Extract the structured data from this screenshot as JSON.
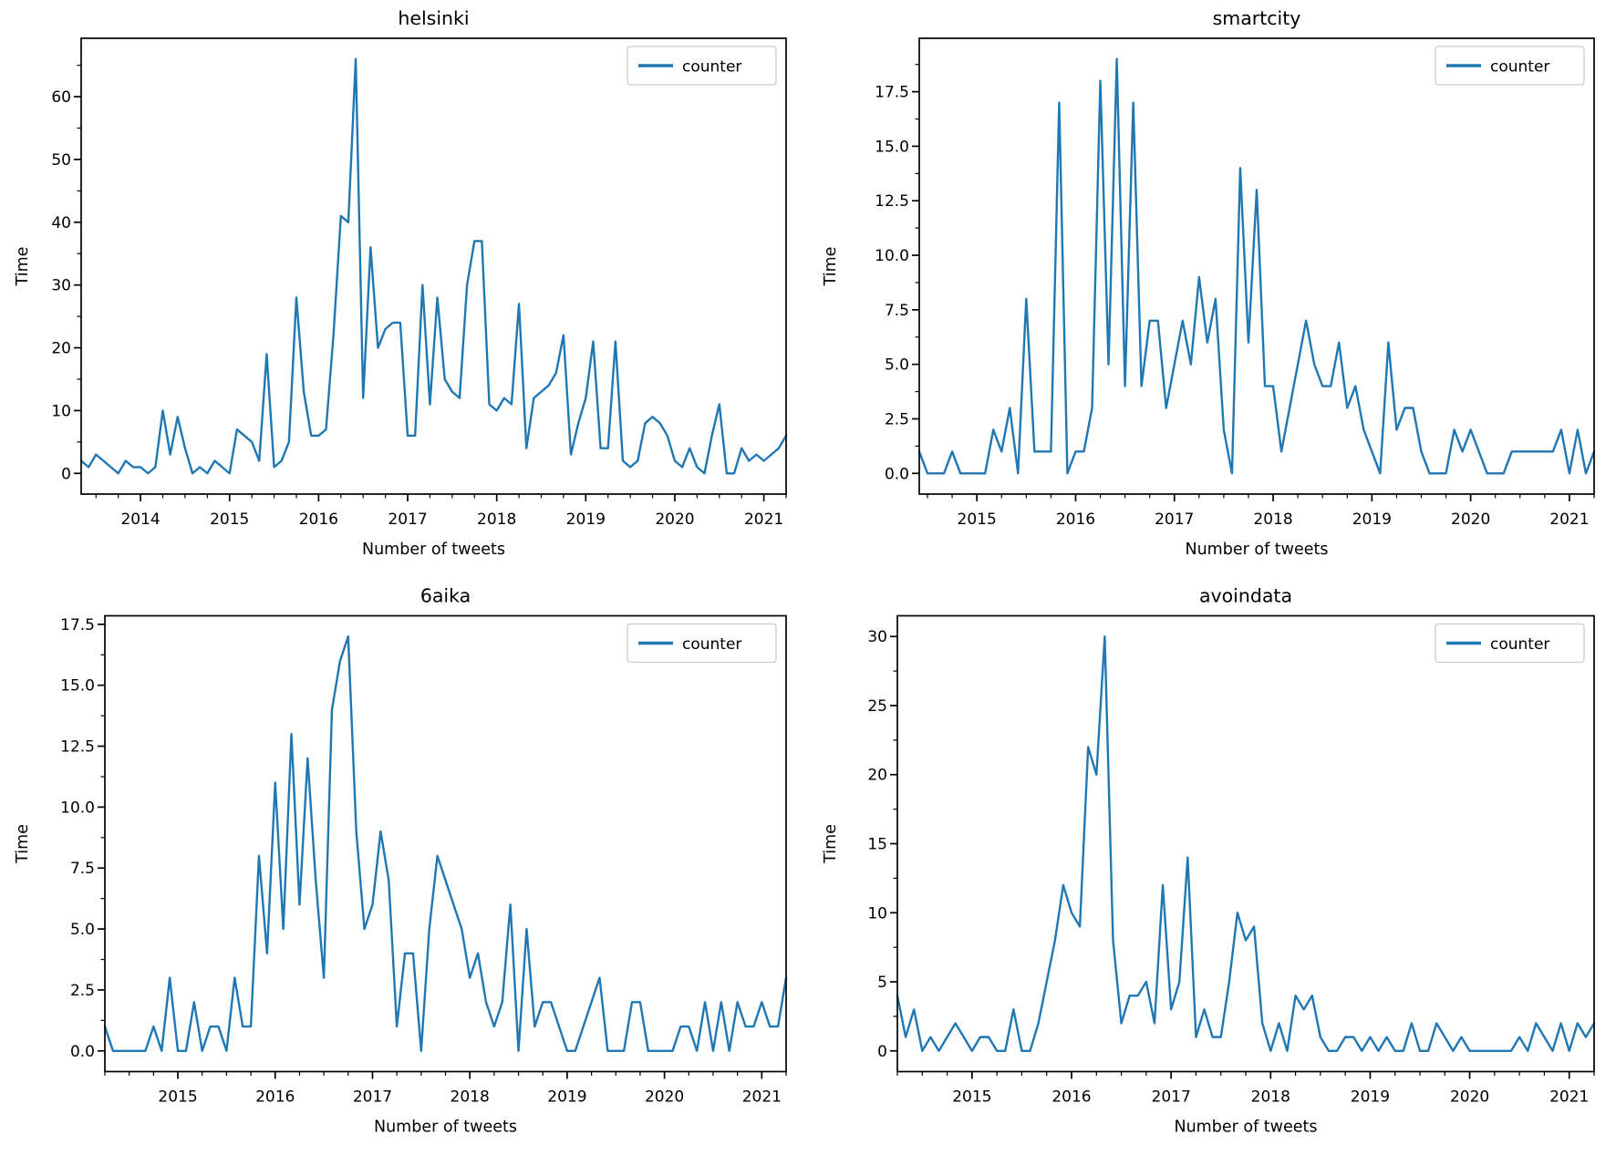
{
  "figure": {
    "background": "#ffffff",
    "line_color": "#1f77b4",
    "axis_color": "#000000",
    "legend_edge_color": "#cccccc",
    "legend_label": "counter"
  },
  "chart_data": [
    {
      "type": "line",
      "title": "helsinki",
      "xlabel": "Number of tweets",
      "ylabel": "Time",
      "legend": [
        "counter"
      ],
      "legend_position": "upper right",
      "grid": false,
      "line_color": "#1f77b4",
      "xlim": [
        2013.3333,
        2021.25
      ],
      "ylim": [
        -3.3,
        69.3
      ],
      "x_ticks": [
        2014,
        2015,
        2016,
        2017,
        2018,
        2019,
        2020,
        2021
      ],
      "x_tick_labels": [
        "2014",
        "2015",
        "2016",
        "2017",
        "2018",
        "2019",
        "2020",
        "2021"
      ],
      "y_ticks": [
        0,
        10,
        20,
        30,
        40,
        50,
        60
      ],
      "y_tick_labels": [
        "0",
        "10",
        "20",
        "30",
        "40",
        "50",
        "60"
      ],
      "series": [
        {
          "name": "counter",
          "x_start": 2013.3333,
          "x_step": 0.0833333,
          "values": [
            2,
            1,
            3,
            2,
            1,
            0,
            2,
            1,
            1,
            0,
            1,
            10,
            3,
            9,
            4,
            0,
            1,
            0,
            2,
            1,
            0,
            7,
            6,
            5,
            2,
            19,
            1,
            2,
            5,
            28,
            13,
            6,
            6,
            7,
            22,
            41,
            40,
            66,
            12,
            36,
            20,
            23,
            24,
            24,
            6,
            6,
            30,
            11,
            28,
            15,
            13,
            12,
            30,
            37,
            37,
            11,
            10,
            12,
            11,
            27,
            4,
            12,
            13,
            14,
            16,
            22,
            3,
            8,
            12,
            21,
            4,
            4,
            21,
            2,
            1,
            2,
            8,
            9,
            8,
            6,
            2,
            1,
            4,
            1,
            0,
            6,
            11,
            0,
            0,
            4,
            2,
            3,
            2,
            3,
            4,
            6
          ]
        }
      ]
    },
    {
      "type": "line",
      "title": "smartcity",
      "xlabel": "Number of tweets",
      "ylabel": "Time",
      "legend": [
        "counter"
      ],
      "legend_position": "upper right",
      "grid": false,
      "line_color": "#1f77b4",
      "xlim": [
        2014.4167,
        2021.25
      ],
      "ylim": [
        -0.95,
        19.95
      ],
      "x_ticks": [
        2015,
        2016,
        2017,
        2018,
        2019,
        2020,
        2021
      ],
      "x_tick_labels": [
        "2015",
        "2016",
        "2017",
        "2018",
        "2019",
        "2020",
        "2021"
      ],
      "y_ticks": [
        0,
        2.5,
        5,
        7.5,
        10,
        12.5,
        15,
        17.5
      ],
      "y_tick_labels": [
        "0.0",
        "2.5",
        "5.0",
        "7.5",
        "10.0",
        "12.5",
        "15.0",
        "17.5"
      ],
      "series": [
        {
          "name": "counter",
          "x_start": 2014.4167,
          "x_step": 0.0833333,
          "values": [
            1,
            0,
            0,
            0,
            1,
            0,
            0,
            0,
            0,
            2,
            1,
            3,
            0,
            8,
            1,
            1,
            1,
            17,
            0,
            1,
            1,
            3,
            18,
            5,
            19,
            4,
            17,
            4,
            7,
            7,
            3,
            5,
            7,
            5,
            9,
            6,
            8,
            2,
            0,
            14,
            6,
            13,
            4,
            4,
            1,
            3,
            5,
            7,
            5,
            4,
            4,
            6,
            3,
            4,
            2,
            1,
            0,
            6,
            2,
            3,
            3,
            1,
            0,
            0,
            0,
            2,
            1,
            2,
            1,
            0,
            0,
            0,
            1,
            1,
            1,
            1,
            1,
            1,
            2,
            0,
            2,
            0,
            1
          ]
        }
      ]
    },
    {
      "type": "line",
      "title": "6aika",
      "xlabel": "Number of tweets",
      "ylabel": "Time",
      "legend": [
        "counter"
      ],
      "legend_position": "upper right",
      "grid": false,
      "line_color": "#1f77b4",
      "xlim": [
        2014.25,
        2021.25
      ],
      "ylim": [
        -0.85,
        17.85
      ],
      "x_ticks": [
        2015,
        2016,
        2017,
        2018,
        2019,
        2020,
        2021
      ],
      "x_tick_labels": [
        "2015",
        "2016",
        "2017",
        "2018",
        "2019",
        "2020",
        "2021"
      ],
      "y_ticks": [
        0,
        2.5,
        5,
        7.5,
        10,
        12.5,
        15,
        17.5
      ],
      "y_tick_labels": [
        "0.0",
        "2.5",
        "5.0",
        "7.5",
        "10.0",
        "12.5",
        "15.0",
        "17.5"
      ],
      "series": [
        {
          "name": "counter",
          "x_start": 2014.25,
          "x_step": 0.0833333,
          "values": [
            1,
            0,
            0,
            0,
            0,
            0,
            1,
            0,
            3,
            0,
            0,
            2,
            0,
            1,
            1,
            0,
            3,
            1,
            1,
            8,
            4,
            11,
            5,
            13,
            6,
            12,
            7,
            3,
            14,
            16,
            17,
            9,
            5,
            6,
            9,
            7,
            1,
            4,
            4,
            0,
            5,
            8,
            7,
            6,
            5,
            3,
            4,
            2,
            1,
            2,
            6,
            0,
            5,
            1,
            2,
            2,
            1,
            0,
            0,
            1,
            2,
            3,
            0,
            0,
            0,
            2,
            2,
            0,
            0,
            0,
            0,
            1,
            1,
            0,
            2,
            0,
            2,
            0,
            2,
            1,
            1,
            2,
            1,
            1,
            3
          ]
        }
      ]
    },
    {
      "type": "line",
      "title": "avoindata",
      "xlabel": "Number of tweets",
      "ylabel": "Time",
      "legend": [
        "counter"
      ],
      "legend_position": "upper right",
      "grid": false,
      "line_color": "#1f77b4",
      "xlim": [
        2014.25,
        2021.25
      ],
      "ylim": [
        -1.5,
        31.5
      ],
      "x_ticks": [
        2015,
        2016,
        2017,
        2018,
        2019,
        2020,
        2021
      ],
      "x_tick_labels": [
        "2015",
        "2016",
        "2017",
        "2018",
        "2019",
        "2020",
        "2021"
      ],
      "y_ticks": [
        0,
        5,
        10,
        15,
        20,
        25,
        30
      ],
      "y_tick_labels": [
        "0",
        "5",
        "10",
        "15",
        "20",
        "25",
        "30"
      ],
      "series": [
        {
          "name": "counter",
          "x_start": 2014.25,
          "x_step": 0.0833333,
          "values": [
            4,
            1,
            3,
            0,
            1,
            0,
            1,
            2,
            1,
            0,
            1,
            1,
            0,
            0,
            3,
            0,
            0,
            2,
            5,
            8,
            12,
            10,
            9,
            22,
            20,
            30,
            8,
            2,
            4,
            4,
            5,
            2,
            12,
            3,
            5,
            14,
            1,
            3,
            1,
            1,
            5,
            10,
            8,
            9,
            2,
            0,
            2,
            0,
            4,
            3,
            4,
            1,
            0,
            0,
            1,
            1,
            0,
            1,
            0,
            1,
            0,
            0,
            2,
            0,
            0,
            2,
            1,
            0,
            1,
            0,
            0,
            0,
            0,
            0,
            0,
            1,
            0,
            2,
            1,
            0,
            2,
            0,
            2,
            1,
            2
          ]
        }
      ]
    }
  ]
}
